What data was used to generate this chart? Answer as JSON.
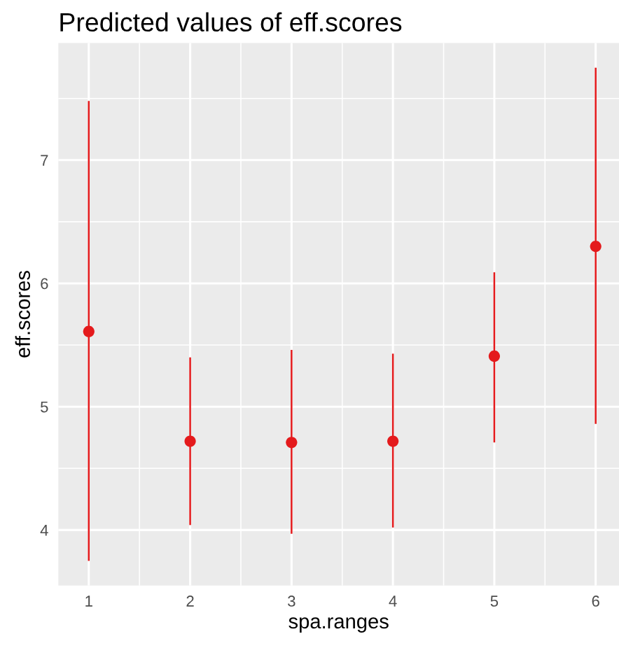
{
  "chart_data": {
    "type": "scatter",
    "title": "Predicted values of eff.scores",
    "xlabel": "spa.ranges",
    "ylabel": "eff.scores",
    "x": [
      1,
      2,
      3,
      4,
      5,
      6
    ],
    "series": [
      {
        "color": "#e41a1c",
        "values": [
          5.61,
          4.72,
          4.71,
          4.72,
          5.41,
          6.3
        ],
        "errors": [
          [
            3.75,
            7.48
          ],
          [
            4.04,
            5.4
          ],
          [
            3.97,
            5.46
          ],
          [
            4.02,
            5.43
          ],
          [
            4.71,
            6.09
          ],
          [
            4.86,
            7.75
          ]
        ]
      }
    ],
    "xlim": [
      0.7,
      6.23
    ],
    "ylim": [
      3.55,
      7.95
    ],
    "xticks": [
      1,
      2,
      3,
      4,
      5,
      6
    ],
    "yticks": [
      4,
      5,
      6,
      7
    ],
    "grid": true,
    "marker": "circle"
  }
}
